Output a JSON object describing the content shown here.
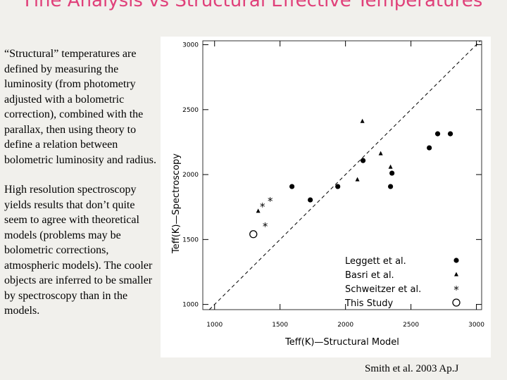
{
  "header": {
    "title": "Fine Analysis vs Structural Effective Temperatures"
  },
  "text": {
    "paragraphs": [
      "“Structural” temperatures are defined by measuring the luminosity (from photometry adjusted with a bolometric correction), combined with the parallax, then using theory to define a relation between bolometric luminosity and radius.",
      "High resolution spectroscopy yields results that don’t quite seem to agree with theoretical models (problems may be bolometric corrections, atmospheric models). The cooler objects are inferred to be smaller by spectroscopy than in the models."
    ]
  },
  "footer": {
    "citation": "Smith et al. 2003 Ap.J"
  },
  "chart_data": {
    "type": "scatter",
    "x_label": "Teff(K)—Structural Model",
    "y_label": "Teff(K)—Spectroscopy",
    "xlim": [
      910,
      3040
    ],
    "ylim": [
      960,
      3030
    ],
    "xticks": [
      1000,
      1500,
      2000,
      2500,
      3000
    ],
    "yticks": [
      1000,
      1500,
      2000,
      2500,
      3000
    ],
    "reference_line": true,
    "series": [
      {
        "name": "Leggett et al.",
        "marker": "circle",
        "color": "#000000",
        "x": [
          2704,
          2801,
          2640,
          2134,
          2355,
          2344,
          1941,
          1591,
          1731
        ],
        "values": [
          2314,
          2314,
          2206,
          2108,
          2011,
          1908,
          1908,
          1908,
          1805
        ]
      },
      {
        "name": "Basri et al.",
        "marker": "triangle",
        "color": "#000000",
        "x": [
          2129,
          2269,
          2091,
          1333,
          2344
        ],
        "values": [
          2411,
          2162,
          1962,
          1719,
          2059
        ]
      },
      {
        "name": "Schweitzer et al.",
        "marker": "star",
        "color": "#000000",
        "x": [
          1366,
          1425,
          1387
        ],
        "values": [
          1762,
          1805,
          1611
        ]
      },
      {
        "name": "This Study",
        "marker": "open-circle",
        "color": "#000000",
        "x": [
          1296
        ],
        "values": [
          1541
        ]
      }
    ]
  }
}
